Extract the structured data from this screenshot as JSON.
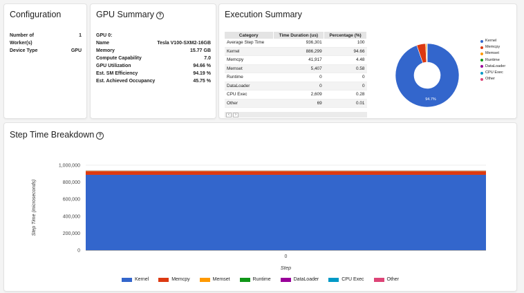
{
  "configuration": {
    "title": "Configuration",
    "rows": [
      {
        "label": "Number of",
        "label2": "Worker(s)",
        "value": "1"
      },
      {
        "label": "Device Type",
        "value": "GPU"
      }
    ]
  },
  "gpu_summary": {
    "title": "GPU Summary",
    "gpu_label": "GPU 0:",
    "rows": [
      {
        "label": "Name",
        "value": "Tesla V100-SXM2-16GB"
      },
      {
        "label": "Memory",
        "value": "15.77 GB"
      },
      {
        "label": "Compute Capability",
        "value": "7.0"
      },
      {
        "label": "GPU Utilization",
        "value": "94.66 %"
      },
      {
        "label": "Est. SM Efficiency",
        "value": "94.19 %"
      },
      {
        "label": "Est. Achieved Occupancy",
        "value": "45.75 %"
      }
    ]
  },
  "execution_summary": {
    "title": "Execution Summary",
    "table": {
      "headers": [
        "Category",
        "Time Duration (us)",
        "Percentage (%)"
      ],
      "rows": [
        [
          "Average Step Time",
          "936,301",
          "100"
        ],
        [
          "Kernel",
          "886,299",
          "94.66"
        ],
        [
          "Memcpy",
          "41,917",
          "4.48"
        ],
        [
          "Memset",
          "5,407",
          "0.58"
        ],
        [
          "Runtime",
          "0",
          "0"
        ],
        [
          "DataLoader",
          "0",
          "0"
        ],
        [
          "CPU Exec",
          "2,609",
          "0.28"
        ],
        [
          "Other",
          "69",
          "0.01"
        ]
      ]
    },
    "pager": [
      "‹",
      "›"
    ],
    "pie_label": "94.7%"
  },
  "step_time": {
    "title": "Step Time Breakdown",
    "ylabel": "Step Time (microseconds)",
    "xlabel": "Step"
  },
  "colors": {
    "Kernel": "#3366cc",
    "Memcpy": "#dc3912",
    "Memset": "#ff9900",
    "Runtime": "#109618",
    "DataLoader": "#990099",
    "CPU Exec": "#0099c6",
    "Other": "#dd4477"
  },
  "chart_data": [
    {
      "type": "pie",
      "donut": true,
      "categories": [
        "Kernel",
        "Memcpy",
        "Memset",
        "Runtime",
        "DataLoader",
        "CPU Exec",
        "Other"
      ],
      "values": [
        886299,
        41917,
        5407,
        0,
        0,
        2609,
        69
      ],
      "slice_label": "94.7%",
      "legend": "right"
    },
    {
      "type": "bar",
      "stacked": true,
      "categories": [
        "0"
      ],
      "series": [
        {
          "name": "Kernel",
          "values": [
            886299
          ]
        },
        {
          "name": "Memcpy",
          "values": [
            41917
          ]
        },
        {
          "name": "Memset",
          "values": [
            5407
          ]
        },
        {
          "name": "Runtime",
          "values": [
            0
          ]
        },
        {
          "name": "DataLoader",
          "values": [
            0
          ]
        },
        {
          "name": "CPU Exec",
          "values": [
            2609
          ]
        },
        {
          "name": "Other",
          "values": [
            69
          ]
        }
      ],
      "xlabel": "Step",
      "ylabel": "Step Time (microseconds)",
      "ylim": [
        0,
        1000000
      ],
      "yticks": [
        "0",
        "200,000",
        "400,000",
        "600,000",
        "800,000",
        "1,000,000"
      ],
      "legend": "bottom"
    }
  ]
}
